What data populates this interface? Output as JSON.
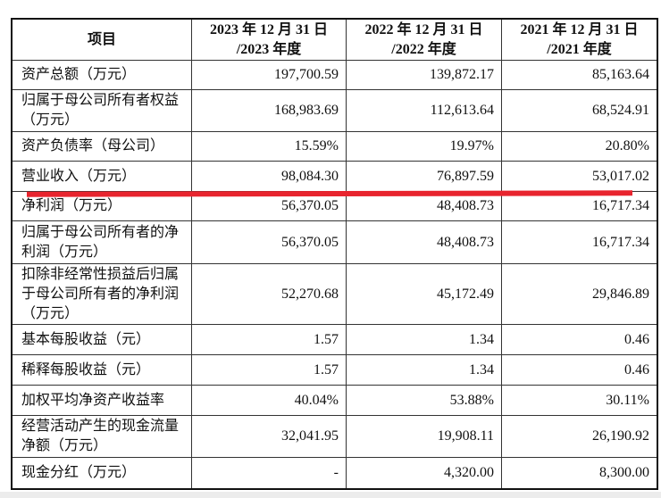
{
  "table": {
    "headers": [
      "项目",
      "2023 年 12 月 31 日\n/2023 年度",
      "2022 年 12 月 31 日\n/2022 年度",
      "2021 年 12 月 31 日\n/2021 年度"
    ],
    "header_lines": [
      [
        "项目"
      ],
      [
        "2023 年 12 月 31 日",
        "/2023 年度"
      ],
      [
        "2022 年 12 月 31 日",
        "/2022 年度"
      ],
      [
        "2021 年 12 月 31 日",
        "/2021 年度"
      ]
    ],
    "rows": [
      {
        "label": "资产总额（万元）",
        "values": [
          "197,700.59",
          "139,872.17",
          "85,163.64"
        ]
      },
      {
        "label": "归属于母公司所有者权益（万元）",
        "values": [
          "168,983.69",
          "112,613.64",
          "68,524.91"
        ]
      },
      {
        "label": "资产负债率（母公司）",
        "values": [
          "15.59%",
          "19.97%",
          "20.80%"
        ]
      },
      {
        "label": "营业收入（万元）",
        "values": [
          "98,084.30",
          "76,897.59",
          "53,017.02"
        ]
      },
      {
        "label": "净利润（万元）",
        "values": [
          "56,370.05",
          "48,408.73",
          "16,717.34"
        ]
      },
      {
        "label": "归属于母公司所有者的净利润（万元）",
        "values": [
          "56,370.05",
          "48,408.73",
          "16,717.34"
        ]
      },
      {
        "label": "扣除非经常性损益后归属于母公司所有者的净利润（万元）",
        "values": [
          "52,270.68",
          "45,172.49",
          "29,846.89"
        ]
      },
      {
        "label": "基本每股收益（元）",
        "values": [
          "1.57",
          "1.34",
          "0.46"
        ]
      },
      {
        "label": "稀释每股收益（元）",
        "values": [
          "1.57",
          "1.34",
          "0.46"
        ]
      },
      {
        "label": "加权平均净资产收益率",
        "values": [
          "40.04%",
          "53.88%",
          "30.11%"
        ]
      },
      {
        "label": "经营活动产生的现金流量净额（万元）",
        "values": [
          "32,041.95",
          "19,908.11",
          "26,190.92"
        ]
      },
      {
        "label": "现金分红（万元）",
        "values": [
          "-",
          "4,320.00",
          "8,300.00"
        ]
      }
    ]
  },
  "annotation": {
    "highlight_color": "#e8242e"
  }
}
